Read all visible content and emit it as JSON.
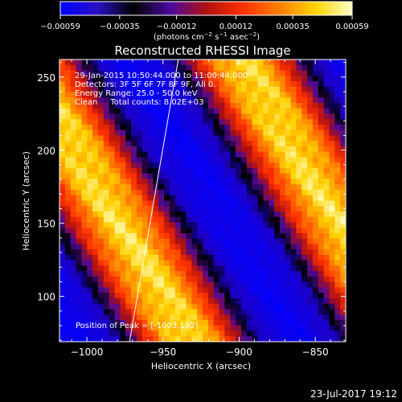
{
  "chart_data": {
    "type": "heatmap",
    "title": "Reconstructed RHESSI Image",
    "xlabel": "Heliocentric X (arcsec)",
    "ylabel": "Heliocentric Y (arcsec)",
    "xlim": [
      -1018,
      -830
    ],
    "ylim": [
      69,
      262
    ],
    "x_ticks": [
      {
        "value": -1000,
        "label": "−1000"
      },
      {
        "value": -950,
        "label": "−950"
      },
      {
        "value": -900,
        "label": "−900"
      },
      {
        "value": -850,
        "label": "−850"
      }
    ],
    "y_ticks": [
      {
        "value": 100,
        "label": "100"
      },
      {
        "value": 150,
        "label": "150"
      },
      {
        "value": 200,
        "label": "200"
      },
      {
        "value": 250,
        "label": "250"
      }
    ],
    "colorbar": {
      "min": -0.00059,
      "max": 0.00059,
      "tick_values": [
        -0.00059,
        -0.00035,
        -0.00012,
        0.00012,
        0.00035,
        0.00059
      ],
      "tick_labels": [
        "−0.00059",
        "−0.00035",
        "−0.00012",
        "0.00012",
        "0.00035",
        "0.00059"
      ],
      "unit_label_parts": [
        "(photons cm",
        "−2",
        " s",
        "−1",
        " asec",
        "−2",
        ")"
      ],
      "colors": [
        "#0000ff",
        "#2a10c8",
        "#000000",
        "#4b0aa0",
        "#b01010",
        "#ff3000",
        "#ff7e00",
        "#ffd300",
        "#ffffc8"
      ]
    },
    "annotations": [
      "29-Jan-2015 10:50:44.000 to 11:00:44.000",
      "Detectors: 3F 5F 6F 7F 8F 9F, All 0.",
      "Energy Range: 25.0 - 50.0 keV",
      "Clean     Total counts: 8.02E+03"
    ],
    "peak_label": "Position of Peak = [-1003,192]",
    "peak": [
      -1003,
      192
    ],
    "limb_line": [
      [
        -972,
        69
      ],
      [
        -940,
        262
      ]
    ]
  },
  "footer": {
    "date": "23-Jul-2017 19:12"
  }
}
